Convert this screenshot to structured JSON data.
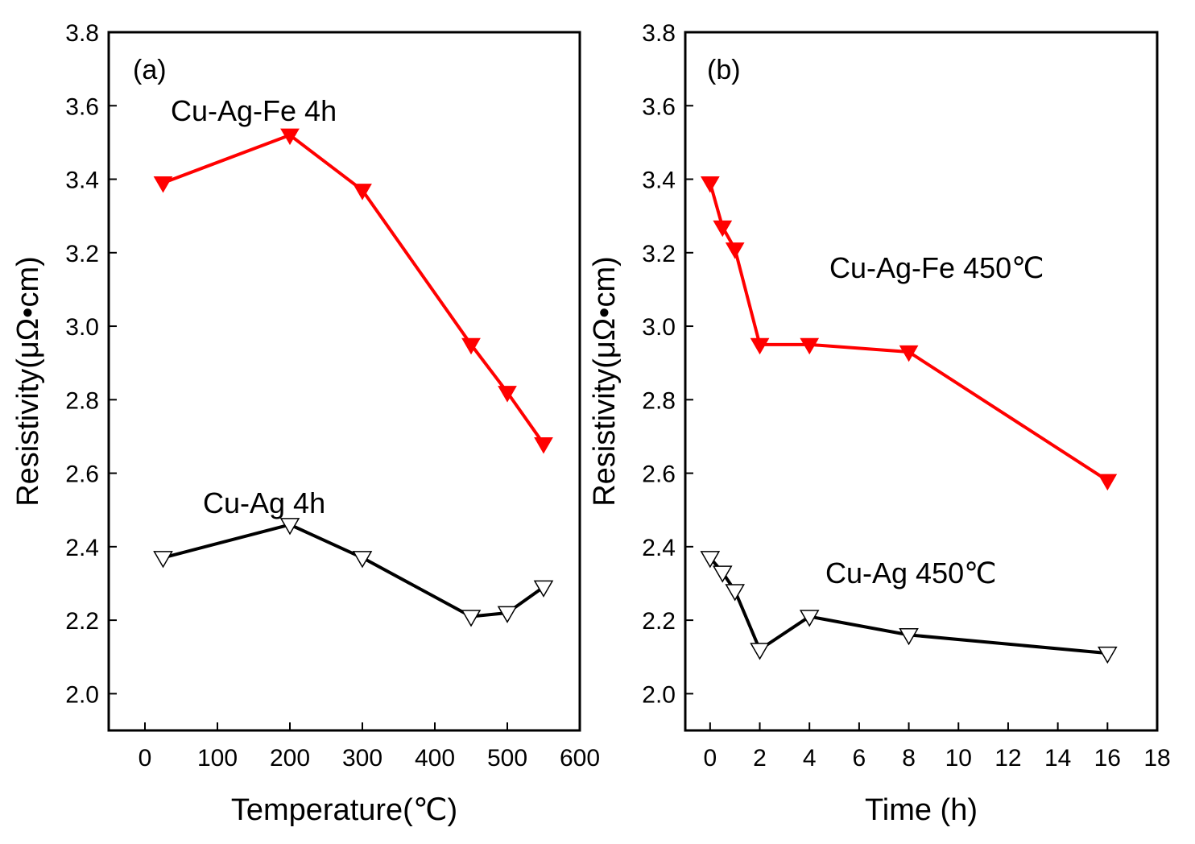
{
  "chart_data": [
    {
      "type": "line",
      "panel_label": "(a)",
      "xlabel": "Temperature(℃)",
      "ylabel": "Resistivity(μΩ•cm)",
      "xlim": [
        -50,
        600
      ],
      "ylim": [
        1.9,
        3.8
      ],
      "xticks": [
        0,
        100,
        200,
        300,
        400,
        500,
        600
      ],
      "yticks": [
        2.0,
        2.2,
        2.4,
        2.6,
        2.8,
        3.0,
        3.2,
        3.4,
        3.6,
        3.8
      ],
      "grid": false,
      "series": [
        {
          "name": "Cu-Ag-Fe 4h",
          "color": "#ff0000",
          "marker": "filled-down-triangle",
          "x": [
            25,
            200,
            300,
            450,
            500,
            550
          ],
          "y": [
            3.39,
            3.52,
            3.37,
            2.95,
            2.82,
            2.68
          ]
        },
        {
          "name": "Cu-Ag 4h",
          "color": "#000000",
          "marker": "open-down-triangle",
          "x": [
            25,
            200,
            300,
            450,
            500,
            550
          ],
          "y": [
            2.37,
            2.46,
            2.37,
            2.21,
            2.22,
            2.29
          ]
        }
      ]
    },
    {
      "type": "line",
      "panel_label": "(b)",
      "xlabel": "Time (h)",
      "ylabel": "Resistivity(μΩ•cm)",
      "xlim": [
        -1,
        18
      ],
      "ylim": [
        1.9,
        3.8
      ],
      "xticks": [
        0,
        2,
        4,
        6,
        8,
        10,
        12,
        14,
        16,
        18
      ],
      "yticks": [
        2.0,
        2.2,
        2.4,
        2.6,
        2.8,
        3.0,
        3.2,
        3.4,
        3.6,
        3.8
      ],
      "grid": false,
      "series": [
        {
          "name": "Cu-Ag-Fe 450℃",
          "color": "#ff0000",
          "marker": "filled-down-triangle",
          "x": [
            0,
            0.5,
            1,
            2,
            4,
            8,
            16
          ],
          "y": [
            3.39,
            3.27,
            3.21,
            2.95,
            2.95,
            2.93,
            2.58
          ]
        },
        {
          "name": "Cu-Ag 450℃",
          "color": "#000000",
          "marker": "open-down-triangle",
          "x": [
            0,
            0.5,
            1,
            2,
            4,
            8,
            16
          ],
          "y": [
            2.37,
            2.33,
            2.28,
            2.12,
            2.21,
            2.16,
            2.11
          ]
        }
      ]
    }
  ]
}
